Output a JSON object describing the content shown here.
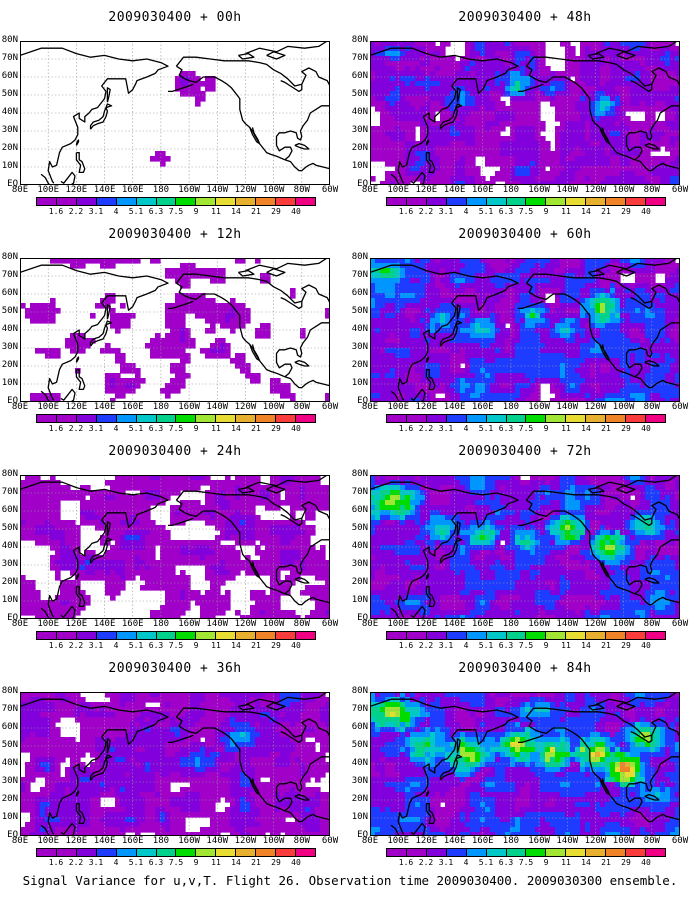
{
  "caption": "Signal Variance for u,v,T. Flight 26. Observation time 2009030400. 2009030300 ensemble.",
  "panels": [
    {
      "title": "2009030400 + 00h",
      "lead_hours": 0
    },
    {
      "title": "2009030400 + 48h",
      "lead_hours": 48
    },
    {
      "title": "2009030400 + 12h",
      "lead_hours": 12
    },
    {
      "title": "2009030400 + 60h",
      "lead_hours": 60
    },
    {
      "title": "2009030400 + 24h",
      "lead_hours": 24
    },
    {
      "title": "2009030400 + 72h",
      "lead_hours": 72
    },
    {
      "title": "2009030400 + 36h",
      "lead_hours": 36
    },
    {
      "title": "2009030400 + 84h",
      "lead_hours": 84
    }
  ],
  "lat_labels": [
    "EQ",
    "10N",
    "20N",
    "30N",
    "40N",
    "50N",
    "60N",
    "70N",
    "80N"
  ],
  "lon_labels": [
    "80E",
    "100E",
    "120E",
    "140E",
    "160E",
    "180",
    "160W",
    "140W",
    "120W",
    "100W",
    "80W",
    "60W"
  ],
  "colorbar": {
    "labels": [
      "1.6",
      "2.2",
      "3.1",
      "4",
      "5.1",
      "6.3",
      "7.5",
      "9",
      "11",
      "14",
      "21",
      "29",
      "40"
    ],
    "colors": [
      "#a000c8",
      "#8200dc",
      "#1e3cff",
      "#0096ff",
      "#00c8c8",
      "#00d28c",
      "#00dc00",
      "#a0e632",
      "#e6dc32",
      "#e6af2d",
      "#f08228",
      "#fa3c3c",
      "#f00082"
    ]
  }
}
